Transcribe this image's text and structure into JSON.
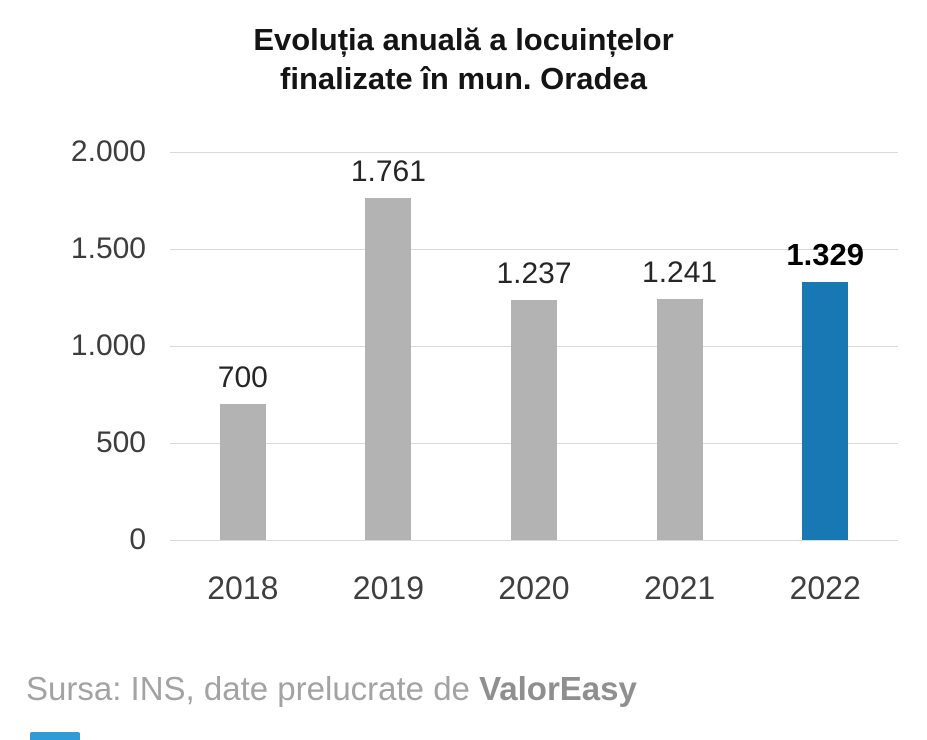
{
  "chart_data": {
    "type": "bar",
    "title": "Evoluția anuală a locuințelor finalizate în mun. Oradea",
    "title_lines": [
      "Evoluția anuală a locuințelor",
      "finalizate în mun. Oradea"
    ],
    "categories": [
      "2018",
      "2019",
      "2020",
      "2021",
      "2022"
    ],
    "values": [
      700,
      1761,
      1237,
      1241,
      1329
    ],
    "value_labels": [
      "700",
      "1.761",
      "1.237",
      "1.241",
      "1.329"
    ],
    "highlight_index": 4,
    "xlabel": "",
    "ylabel": "",
    "ylim": [
      0,
      2000
    ],
    "yticks": [
      0,
      500,
      1000,
      1500,
      2000
    ],
    "ytick_labels": [
      "0",
      "500",
      "1.000",
      "1.500",
      "2.000"
    ],
    "grid": true,
    "legend": false,
    "colors": {
      "bar": "#b3b3b3",
      "highlight": "#1878b4",
      "gridline": "#d9d9d9"
    }
  },
  "footer": {
    "source_prefix": "Sursa: INS, date prelucrate de ",
    "source_brand": "ValorEasy"
  }
}
